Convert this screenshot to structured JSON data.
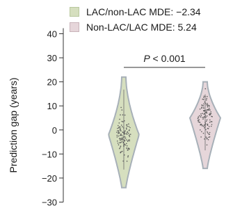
{
  "legend": {
    "items": [
      {
        "label": "LAC/non-LAC MDE: −2.34",
        "color": "#d6dfbf",
        "edge": "#b9c89e"
      },
      {
        "label": "Non-LAC/LAC MDE: 5.24",
        "color": "#e6d6da",
        "edge": "#c9b4ba"
      }
    ]
  },
  "chart_data": {
    "type": "violin",
    "ylabel": "Prediction gap (years)",
    "ylim": [
      -30,
      40
    ],
    "yticks": [
      40,
      30,
      20,
      10,
      0,
      -10,
      -20,
      -30
    ],
    "yticklabels": [
      "40",
      "30",
      "20",
      "10",
      "0",
      "−10",
      "−20",
      "−30"
    ],
    "series": [
      {
        "name": "LAC/non-LAC MDE: −2.34",
        "mean": -2.34,
        "min": -24,
        "max": 22,
        "center": -2,
        "fill": "#d6dfbf",
        "outline": "#a7b0b8"
      },
      {
        "name": "Non-LAC/LAC MDE: 5.24",
        "mean": 5.24,
        "min": -16,
        "max": 20,
        "center": 5,
        "fill": "#e6d6da",
        "outline": "#a7b0b8"
      }
    ],
    "annotation": {
      "text_italic": "P",
      "text_rest": " < 0.001",
      "from": 0,
      "to": 1,
      "y": 26
    }
  }
}
